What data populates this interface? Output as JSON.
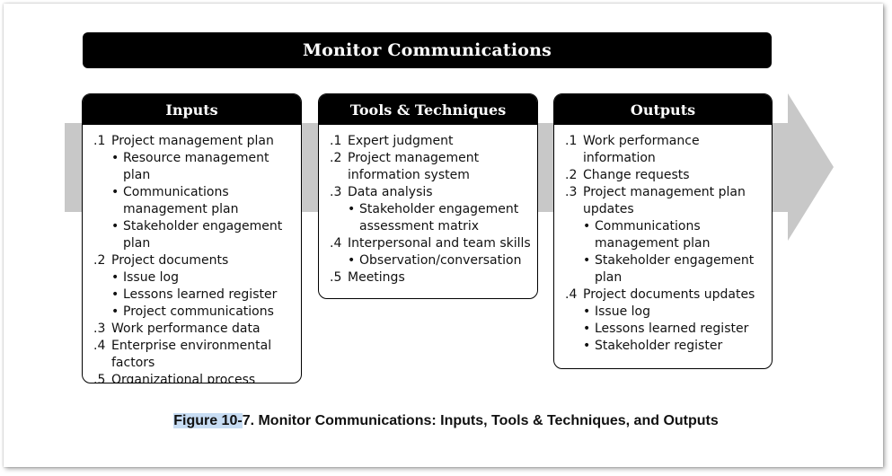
{
  "title": "Monitor Communications",
  "inputs": {
    "header": "Inputs",
    "items": [
      {
        "num": ".1",
        "text": "Project management plan",
        "subs": [
          "Resource management plan",
          "Communications management plan",
          "Stakeholder engagement plan"
        ]
      },
      {
        "num": ".2",
        "text": "Project documents",
        "subs": [
          "Issue log",
          "Lessons learned register",
          "Project communications"
        ]
      },
      {
        "num": ".3",
        "text": "Work performance data",
        "subs": []
      },
      {
        "num": ".4",
        "text": "Enterprise environmental factors",
        "subs": []
      },
      {
        "num": ".5",
        "text": "Organizational process assets",
        "subs": []
      }
    ]
  },
  "tools": {
    "header": "Tools & Techniques",
    "items": [
      {
        "num": ".1",
        "text": "Expert judgment",
        "subs": []
      },
      {
        "num": ".2",
        "text": "Project management information system",
        "subs": []
      },
      {
        "num": ".3",
        "text": "Data analysis",
        "subs": [
          "Stakeholder engagement assessment matrix"
        ]
      },
      {
        "num": ".4",
        "text": "Interpersonal and team skills",
        "subs": [
          "Observation/conversation"
        ]
      },
      {
        "num": ".5",
        "text": "Meetings",
        "subs": []
      }
    ]
  },
  "outputs": {
    "header": "Outputs",
    "items": [
      {
        "num": ".1",
        "text": "Work performance information",
        "subs": []
      },
      {
        "num": ".2",
        "text": "Change requests",
        "subs": []
      },
      {
        "num": ".3",
        "text": "Project management plan updates",
        "subs": [
          "Communications management plan",
          "Stakeholder engagement plan"
        ]
      },
      {
        "num": ".4",
        "text": "Project documents updates",
        "subs": [
          "Issue log",
          "Lessons learned register",
          "Stakeholder register"
        ]
      }
    ]
  },
  "caption": {
    "highlight": "Figure 10-",
    "rest": "7. Monitor Communications: Inputs, Tools & Techniques, and Outputs"
  },
  "colors": {
    "arrow": "#c8c8c8",
    "header_bg": "#000000",
    "caption_highlight": "#c7dcf3"
  }
}
